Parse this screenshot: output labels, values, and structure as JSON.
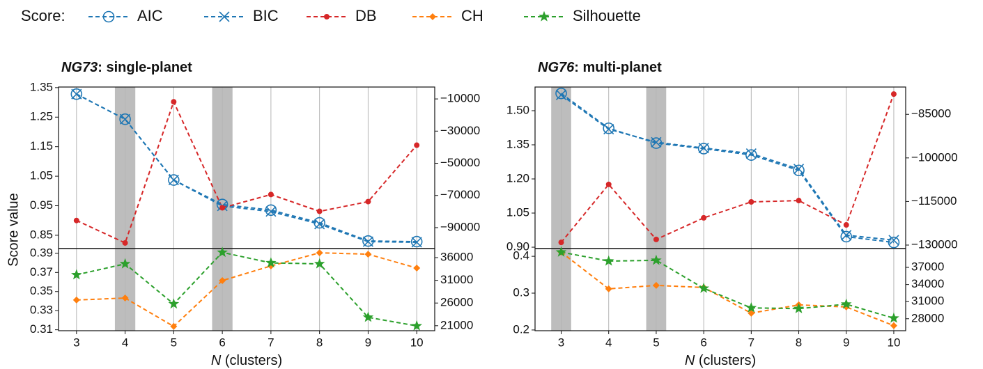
{
  "legend_title": "Score:",
  "chart_data": [
    {
      "type": "line",
      "title": [
        "NG73",
        ": single-planet"
      ],
      "xlabel": [
        "N",
        " (clusters)"
      ],
      "ylabel": "Score value",
      "x": [
        3,
        4,
        5,
        6,
        7,
        8,
        9,
        10
      ],
      "xlim": [
        2.63,
        10.37
      ],
      "xticks": [
        3,
        4,
        5,
        6,
        7,
        8,
        9,
        10
      ],
      "highlight": [
        4,
        6
      ],
      "grid": true,
      "top": {
        "ylim": [
          0.805,
          1.352
        ],
        "yticks": [
          0.85,
          0.95,
          1.05,
          1.15,
          1.25,
          1.35
        ],
        "ytick_color": "#d62728",
        "y2lim": [
          -103000,
          -2600
        ],
        "y2ticks": [
          {
            "value": -10000,
            "label": "−10000"
          },
          {
            "value": -30000,
            "label": "−30000"
          },
          {
            "value": -50000,
            "label": "−50000"
          },
          {
            "value": -70000,
            "label": "−70000"
          },
          {
            "value": -90000,
            "label": "−90000"
          }
        ],
        "y2tick_color": "#1f77b4",
        "series": [
          {
            "name": "AIC",
            "color": "#1f77b4",
            "marker": "circle-open",
            "axis": "y2",
            "values": [
              -7000,
              -22600,
              -60400,
              -75600,
              -79100,
              -87000,
              -98300,
              -98700
            ]
          },
          {
            "name": "BIC",
            "color": "#1f77b4",
            "marker": "x",
            "axis": "y2",
            "values": [
              -7000,
              -22600,
              -60400,
              -76500,
              -80000,
              -87800,
              -98700,
              -99100
            ]
          },
          {
            "name": "DB",
            "color": "#d62728",
            "marker": "dot",
            "axis": "y",
            "values": [
              0.9,
              0.824,
              1.302,
              0.943,
              0.988,
              0.931,
              0.964,
              1.155
            ]
          }
        ]
      },
      "bottom": {
        "ylim": [
          0.309,
          0.395
        ],
        "yticks": [
          0.31,
          0.33,
          0.35,
          0.37,
          0.39
        ],
        "ytick_color": "#2ca02c",
        "y2lim": [
          19900,
          38000
        ],
        "y2ticks": [
          21000,
          26000,
          31000,
          36000
        ],
        "y2tick_color": "#ff7f0e",
        "series": [
          {
            "name": "CH",
            "color": "#ff7f0e",
            "marker": "diamond",
            "axis": "y2",
            "values": [
              26660,
              27100,
              20850,
              30950,
              34160,
              37070,
              36760,
              33700
            ]
          },
          {
            "name": "Silhouette",
            "color": "#2ca02c",
            "marker": "star",
            "axis": "y",
            "values": [
              0.3675,
              0.379,
              0.337,
              0.391,
              0.38,
              0.379,
              0.323,
              0.314
            ]
          }
        ]
      }
    },
    {
      "type": "line",
      "title": [
        "NG76",
        ": multi-planet"
      ],
      "xlabel": [
        "N",
        " (clusters)"
      ],
      "x": [
        3,
        4,
        5,
        6,
        7,
        8,
        9,
        10
      ],
      "xlim": [
        2.45,
        10.25
      ],
      "xticks": [
        3,
        4,
        5,
        6,
        7,
        8,
        9,
        10
      ],
      "highlight": [
        3,
        5
      ],
      "grid": true,
      "top": {
        "ylim": [
          0.894,
          1.604
        ],
        "yticks": [
          {
            "value": 0.9,
            "label": "0.90"
          },
          1.05,
          {
            "value": 1.2,
            "label": "1.20"
          },
          1.35,
          {
            "value": 1.5,
            "label": "1.50"
          }
        ],
        "ytick_color": "#d62728",
        "y2lim": [
          -131200,
          -75600
        ],
        "y2ticks": [
          {
            "value": -130000,
            "label": "−130000"
          },
          {
            "value": -115000,
            "label": "−115000"
          },
          {
            "value": -100000,
            "label": "−100000"
          },
          {
            "value": -85000,
            "label": "−85000"
          }
        ],
        "y2tick_color": "#1f77b4",
        "series": [
          {
            "color": "#1f77b4",
            "marker": "circle-open",
            "axis": "y2",
            "values": [
              -77800,
              -89800,
              -94900,
              -96800,
              -99000,
              -104300,
              -127100,
              -129100
            ]
          },
          {
            "color": "#1f77b4",
            "marker": "x",
            "axis": "y2",
            "values": [
              -78300,
              -90100,
              -94600,
              -96600,
              -98500,
              -103800,
              -126600,
              -128300
            ]
          },
          {
            "color": "#d62728",
            "marker": "dot",
            "axis": "y",
            "values": [
              0.921,
              1.176,
              0.934,
              1.029,
              1.099,
              1.105,
              0.998,
              1.573
            ]
          }
        ]
      },
      "bottom": {
        "ylim": [
          0.198,
          0.421
        ],
        "yticks": [
          0.2,
          0.3,
          0.4
        ],
        "ytick_color": "#2ca02c",
        "y2lim": [
          25900,
          40300
        ],
        "y2ticks": [
          28000,
          31000,
          34000,
          37000
        ],
        "y2tick_color": "#ff7f0e",
        "series": [
          {
            "color": "#ff7f0e",
            "marker": "diamond",
            "axis": "y2",
            "values": [
              39670,
              33240,
              33840,
              33480,
              28970,
              30430,
              30060,
              26790
            ]
          },
          {
            "color": "#2ca02c",
            "marker": "star",
            "axis": "y",
            "values": [
              0.4113,
              0.387,
              0.389,
              0.313,
              0.26,
              0.258,
              0.27,
              0.232
            ]
          }
        ]
      }
    }
  ]
}
